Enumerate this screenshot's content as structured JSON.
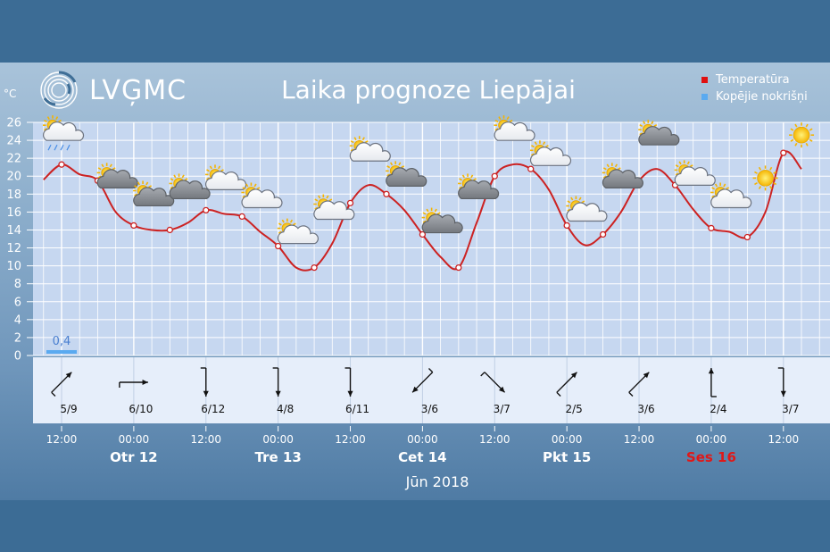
{
  "header": {
    "logo_text": "LVĢMC",
    "title": "Laika prognoze Liepājai",
    "unit": "°C"
  },
  "legend": [
    {
      "label": "Temperatūra",
      "color": "#e01010"
    },
    {
      "label": "Kopējie nokrišņi",
      "color": "#5aaaf0"
    }
  ],
  "colors": {
    "temperature_line": "#cc2222",
    "grid_line": "#ffffff",
    "plot_bg": "#c6d7f0",
    "precip_bar": "#5aaaf0"
  },
  "chart_data": {
    "type": "line",
    "title": "Laika prognoze Liepājai",
    "ylabel": "°C",
    "ylim": [
      0,
      26
    ],
    "yticks": [
      0,
      2,
      4,
      6,
      8,
      10,
      12,
      14,
      16,
      18,
      20,
      22,
      24,
      26
    ],
    "grid": true,
    "legend_position": "top-right",
    "x_labels": [
      {
        "time": "12:00",
        "day": ""
      },
      {
        "time": "00:00",
        "day": "Otr 12"
      },
      {
        "time": "12:00",
        "day": ""
      },
      {
        "time": "00:00",
        "day": "Tre 13"
      },
      {
        "time": "12:00",
        "day": ""
      },
      {
        "time": "00:00",
        "day": "Cet 14"
      },
      {
        "time": "12:00",
        "day": ""
      },
      {
        "time": "00:00",
        "day": "Pkt 15"
      },
      {
        "time": "12:00",
        "day": ""
      },
      {
        "time": "00:00",
        "day": "Ses 16",
        "weekend": true
      },
      {
        "time": "12:00",
        "day": ""
      }
    ],
    "month_label": "Jūn 2018",
    "series": [
      {
        "name": "Temperatūra",
        "x": [
          "2018-06-11 09:00",
          "2018-06-11 12:00",
          "2018-06-11 15:00",
          "2018-06-11 18:00",
          "2018-06-11 21:00",
          "2018-06-12 00:00",
          "2018-06-12 03:00",
          "2018-06-12 06:00",
          "2018-06-12 09:00",
          "2018-06-12 12:00",
          "2018-06-12 15:00",
          "2018-06-12 18:00",
          "2018-06-12 21:00",
          "2018-06-13 00:00",
          "2018-06-13 03:00",
          "2018-06-13 06:00",
          "2018-06-13 09:00",
          "2018-06-13 12:00",
          "2018-06-13 15:00",
          "2018-06-13 18:00",
          "2018-06-13 21:00",
          "2018-06-14 00:00",
          "2018-06-14 03:00",
          "2018-06-14 06:00",
          "2018-06-14 09:00",
          "2018-06-14 12:00",
          "2018-06-14 15:00",
          "2018-06-14 18:00",
          "2018-06-14 21:00",
          "2018-06-15 00:00",
          "2018-06-15 03:00",
          "2018-06-15 06:00",
          "2018-06-15 09:00",
          "2018-06-15 12:00",
          "2018-06-15 15:00",
          "2018-06-15 18:00",
          "2018-06-15 21:00",
          "2018-06-16 00:00",
          "2018-06-16 03:00",
          "2018-06-16 06:00",
          "2018-06-16 09:00",
          "2018-06-16 12:00",
          "2018-06-16 15:00"
        ],
        "values": [
          19.6,
          21.3,
          20.2,
          19.5,
          16.0,
          14.5,
          14.0,
          14.0,
          14.8,
          16.2,
          15.8,
          15.5,
          13.8,
          12.2,
          9.8,
          9.8,
          12.5,
          17.0,
          19.0,
          18.0,
          16.2,
          13.5,
          11.0,
          9.8,
          14.8,
          20.0,
          21.3,
          20.8,
          18.5,
          14.5,
          12.3,
          13.5,
          16.0,
          19.5,
          20.8,
          19.0,
          16.3,
          14.2,
          13.8,
          13.2,
          16.0,
          22.6,
          20.8
        ]
      }
    ],
    "precipitation": [
      {
        "x": "2018-06-11 12:00",
        "value": 0.4,
        "label": "0,4"
      }
    ],
    "weather_icons": [
      {
        "x": "2018-06-11 12:00",
        "icon": "sun-cloud-rain-icon"
      },
      {
        "x": "2018-06-11 21:00",
        "icon": "sun-dark-cloud-icon"
      },
      {
        "x": "2018-06-12 03:00",
        "icon": "sun-dark-cloud-icon"
      },
      {
        "x": "2018-06-12 09:00",
        "icon": "sun-dark-cloud-icon"
      },
      {
        "x": "2018-06-12 15:00",
        "icon": "sun-cloud-icon"
      },
      {
        "x": "2018-06-12 21:00",
        "icon": "sun-cloud-icon"
      },
      {
        "x": "2018-06-13 03:00",
        "icon": "sun-cloud-icon"
      },
      {
        "x": "2018-06-13 09:00",
        "icon": "sun-cloud-icon"
      },
      {
        "x": "2018-06-13 15:00",
        "icon": "sun-cloud-icon"
      },
      {
        "x": "2018-06-13 21:00",
        "icon": "sun-dark-cloud-icon"
      },
      {
        "x": "2018-06-14 03:00",
        "icon": "sun-dark-cloud-icon"
      },
      {
        "x": "2018-06-14 09:00",
        "icon": "sun-dark-cloud-icon"
      },
      {
        "x": "2018-06-14 15:00",
        "icon": "sun-cloud-icon"
      },
      {
        "x": "2018-06-14 21:00",
        "icon": "sun-cloud-icon"
      },
      {
        "x": "2018-06-15 03:00",
        "icon": "sun-cloud-icon"
      },
      {
        "x": "2018-06-15 09:00",
        "icon": "sun-dark-cloud-icon"
      },
      {
        "x": "2018-06-15 15:00",
        "icon": "sun-dark-cloud-icon"
      },
      {
        "x": "2018-06-15 21:00",
        "icon": "sun-cloud-icon"
      },
      {
        "x": "2018-06-16 03:00",
        "icon": "sun-cloud-icon"
      },
      {
        "x": "2018-06-16 09:00",
        "icon": "sun-icon"
      },
      {
        "x": "2018-06-16 15:00",
        "icon": "sun-icon"
      }
    ],
    "wind": [
      {
        "x": "2018-06-11 12:00",
        "direction_deg": 225,
        "label": "5/9"
      },
      {
        "x": "2018-06-12 00:00",
        "direction_deg": 270,
        "label": "6/10"
      },
      {
        "x": "2018-06-12 12:00",
        "direction_deg": 0,
        "label": "6/12"
      },
      {
        "x": "2018-06-13 00:00",
        "direction_deg": 0,
        "label": "4/8"
      },
      {
        "x": "2018-06-13 12:00",
        "direction_deg": 0,
        "label": "6/11"
      },
      {
        "x": "2018-06-14 00:00",
        "direction_deg": 45,
        "label": "3/6"
      },
      {
        "x": "2018-06-14 12:00",
        "direction_deg": 315,
        "label": "3/7"
      },
      {
        "x": "2018-06-15 00:00",
        "direction_deg": 225,
        "label": "2/5"
      },
      {
        "x": "2018-06-15 12:00",
        "direction_deg": 225,
        "label": "3/6"
      },
      {
        "x": "2018-06-16 00:00",
        "direction_deg": 180,
        "label": "2/4"
      },
      {
        "x": "2018-06-16 12:00",
        "direction_deg": 0,
        "label": "3/7"
      }
    ]
  }
}
